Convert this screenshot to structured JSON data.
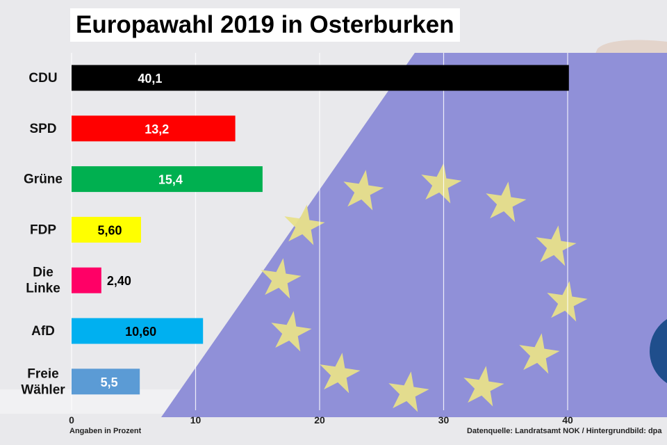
{
  "chart_data": {
    "type": "bar",
    "orientation": "horizontal",
    "title": "Europawahl 2019 in Osterburken",
    "categories": [
      "CDU",
      "SPD",
      "Grüne",
      "FDP",
      "Die Linke",
      "AfD",
      "Freie Wähler"
    ],
    "category_lines": [
      [
        "CDU"
      ],
      [
        "SPD"
      ],
      [
        "Grüne"
      ],
      [
        "FDP"
      ],
      [
        "Die",
        "Linke"
      ],
      [
        "AfD"
      ],
      [
        "Freie",
        "Wähler"
      ]
    ],
    "values": [
      40.1,
      13.2,
      15.4,
      5.6,
      2.4,
      10.6,
      5.5
    ],
    "value_labels": [
      "40,1",
      "13,2",
      "15,4",
      "5,60",
      "2,40",
      "10,60",
      "5,5"
    ],
    "colors": [
      "#000000",
      "#ff0000",
      "#00b050",
      "#ffff00",
      "#ff0066",
      "#00b0f0",
      "#5b9bd5"
    ],
    "label_colors": [
      "#ffffff",
      "#ffffff",
      "#ffffff",
      "#000000",
      "#000000",
      "#000000",
      "#ffffff"
    ],
    "xlim": [
      0,
      40
    ],
    "xticks": [
      "0",
      "10",
      "20",
      "30",
      "40"
    ],
    "grid": true,
    "xlabel": "Angaben in Prozent",
    "source": "Datenquelle: Landratsamt NOK / Hintergrundbild: dpa"
  }
}
